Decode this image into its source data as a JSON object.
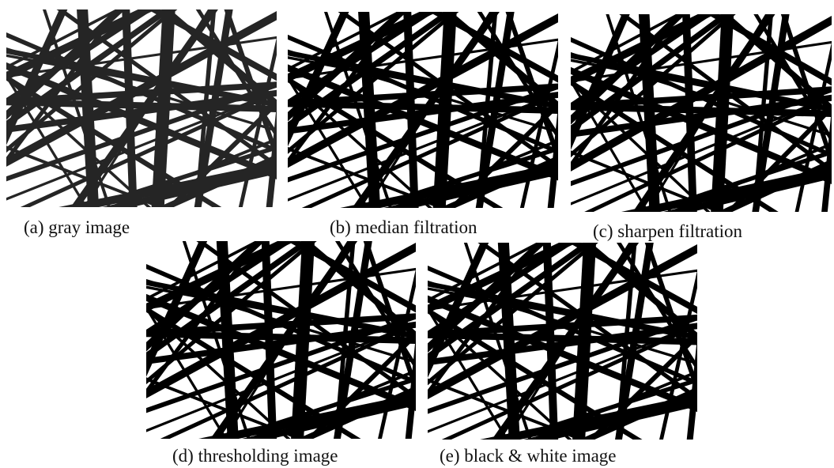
{
  "figure": {
    "panels": [
      {
        "caption": "(a) gray image"
      },
      {
        "caption": "(b) median filtration"
      },
      {
        "caption": "(c) sharpen filtration"
      },
      {
        "caption": "(d) thresholding image"
      },
      {
        "caption": "(e) black & white image"
      }
    ]
  }
}
